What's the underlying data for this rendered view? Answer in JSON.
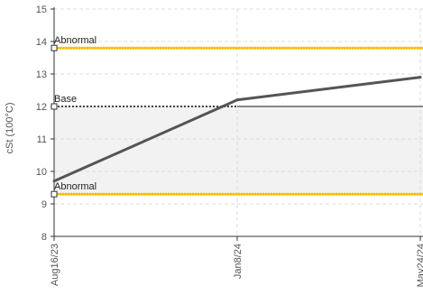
{
  "chart_data": {
    "type": "line",
    "title": "",
    "xlabel": "",
    "ylabel": "cSt (100°C)",
    "ylim": [
      8,
      15
    ],
    "y_ticks": [
      "8",
      "9",
      "10",
      "11",
      "12",
      "13",
      "14",
      "15"
    ],
    "x_tick_labels": [
      "Aug16/23",
      "Jan8/24",
      "May24/24"
    ],
    "grid": true,
    "series": [
      {
        "values": [
          {
            "x": "Aug16/23",
            "y": 9.7
          },
          {
            "x": "Jan8/24",
            "y": 12.2
          },
          {
            "x": "May24/24",
            "y": 12.9
          }
        ],
        "color": "#555555"
      }
    ],
    "reference_lines": [
      {
        "label": "Abnormal",
        "value": 13.8,
        "color": "#f2c200",
        "style": "dotted"
      },
      {
        "label": "Base",
        "value": 12.0,
        "color": "#444444",
        "style": "dotted"
      },
      {
        "label": "Abnormal",
        "value": 9.3,
        "color": "#f2c200",
        "style": "dotted"
      }
    ],
    "base_step": {
      "from": "Jan8/24",
      "value": 12.0,
      "color": "#888888"
    },
    "band": {
      "from": 9.3,
      "to": 12.0,
      "color": "#f2f2f2"
    }
  }
}
